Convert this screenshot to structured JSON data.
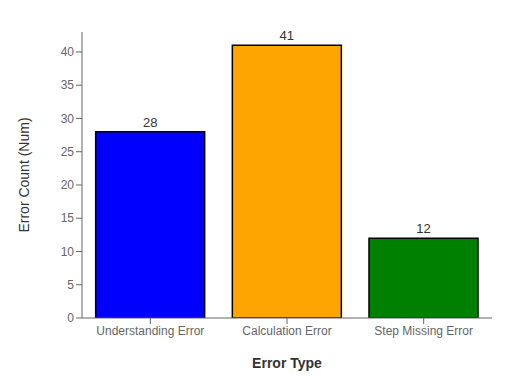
{
  "chart_data": {
    "type": "bar",
    "categories": [
      "Understanding Error",
      "Calculation Error",
      "Step Missing Error"
    ],
    "values": [
      28,
      41,
      12
    ],
    "colors": [
      "#0000ff",
      "#ffa500",
      "#008000"
    ],
    "xlabel": "Error Type",
    "ylabel": "Error Count (Num)",
    "ylim": [
      0,
      43
    ],
    "yticks": [
      0,
      5,
      10,
      15,
      20,
      25,
      30,
      35,
      40
    ],
    "data_labels": true,
    "grid": false
  }
}
